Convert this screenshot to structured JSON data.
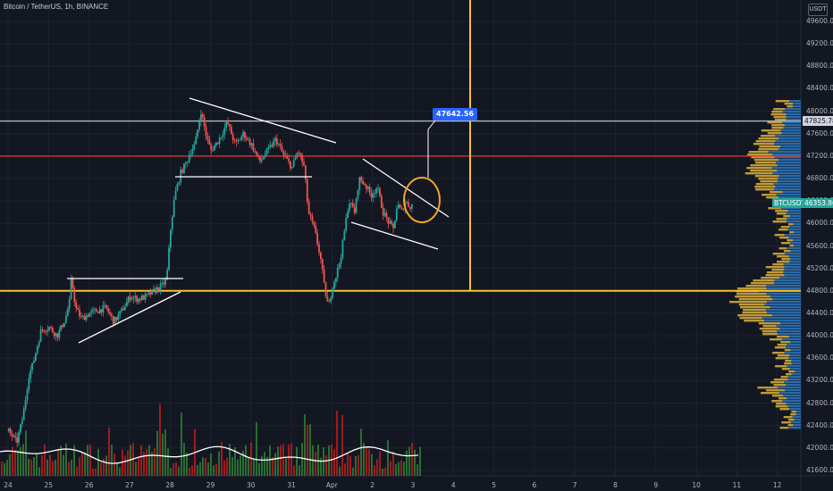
{
  "header": {
    "symbol_title": "Bitcoin / TetherUS, 1h, BINANCE",
    "unit": "USDT"
  },
  "chart_data": {
    "type": "candlestick",
    "title": "Bitcoin / TetherUS, 1h, BINANCE",
    "ylim": [
      41500,
      50000
    ],
    "y_ticks": [
      41600,
      42000,
      42400,
      42800,
      43200,
      43600,
      44000,
      44400,
      44800,
      45200,
      45600,
      46000,
      46400,
      46800,
      47200,
      47600,
      48000,
      48400,
      48800,
      49200,
      49600
    ],
    "x_ticks": [
      "24",
      "25",
      "26",
      "27",
      "28",
      "29",
      "30",
      "31",
      "Apr",
      "2",
      "3",
      "4",
      "5",
      "6",
      "7",
      "8",
      "9",
      "10",
      "11",
      "12"
    ],
    "price_path": [
      [
        24.0,
        42300
      ],
      [
        24.2,
        42100
      ],
      [
        24.35,
        42550
      ],
      [
        24.5,
        43300
      ],
      [
        24.6,
        43500
      ],
      [
        24.8,
        44100
      ],
      [
        25.0,
        44150
      ],
      [
        25.2,
        44000
      ],
      [
        25.4,
        44300
      ],
      [
        25.5,
        44600
      ],
      [
        25.55,
        45050
      ],
      [
        25.65,
        44500
      ],
      [
        25.8,
        44300
      ],
      [
        26.0,
        44400
      ],
      [
        26.2,
        44450
      ],
      [
        26.4,
        44500
      ],
      [
        26.6,
        44250
      ],
      [
        26.8,
        44450
      ],
      [
        27.0,
        44700
      ],
      [
        27.2,
        44650
      ],
      [
        27.4,
        44700
      ],
      [
        27.6,
        44800
      ],
      [
        27.8,
        44900
      ],
      [
        27.9,
        45000
      ],
      [
        28.0,
        45900
      ],
      [
        28.1,
        46500
      ],
      [
        28.25,
        46900
      ],
      [
        28.4,
        47100
      ],
      [
        28.5,
        47300
      ],
      [
        28.6,
        47400
      ],
      [
        28.75,
        48000
      ],
      [
        28.9,
        47500
      ],
      [
        29.0,
        47300
      ],
      [
        29.2,
        47500
      ],
      [
        29.4,
        47800
      ],
      [
        29.6,
        47400
      ],
      [
        29.8,
        47600
      ],
      [
        30.0,
        47400
      ],
      [
        30.2,
        47100
      ],
      [
        30.4,
        47300
      ],
      [
        30.6,
        47500
      ],
      [
        30.8,
        47200
      ],
      [
        31.0,
        47000
      ],
      [
        31.15,
        47300
      ],
      [
        31.3,
        47000
      ],
      [
        31.4,
        46200
      ],
      [
        31.55,
        45900
      ],
      [
        31.7,
        45400
      ],
      [
        31.8,
        44850
      ],
      [
        31.9,
        44500
      ],
      [
        32.0,
        44900
      ],
      [
        32.1,
        45100
      ],
      [
        32.2,
        45400
      ],
      [
        32.3,
        45900
      ],
      [
        32.4,
        46400
      ],
      [
        32.55,
        46200
      ],
      [
        32.65,
        46800
      ],
      [
        32.8,
        46700
      ],
      [
        32.95,
        46500
      ],
      [
        33.1,
        46650
      ],
      [
        33.25,
        46200
      ],
      [
        33.4,
        46000
      ],
      [
        33.5,
        45900
      ],
      [
        33.6,
        46350
      ],
      [
        33.7,
        46200
      ],
      [
        33.8,
        46400
      ],
      [
        33.9,
        46300
      ],
      [
        34.0,
        46350
      ]
    ],
    "horizontal_levels": [
      {
        "price": 47825.78,
        "color": "#b2b5be",
        "label": "47825.78"
      },
      {
        "price": 47200,
        "color": "#e53935"
      },
      {
        "price": 44800,
        "color": "#fbc02d"
      }
    ],
    "last_price": {
      "symbol": "BTCUSDT",
      "price": "46353.86"
    },
    "annotation": {
      "text": "47642.56"
    },
    "volume_profile_note": "histogram at right side",
    "volume_series": {
      "name": "Volume"
    }
  }
}
